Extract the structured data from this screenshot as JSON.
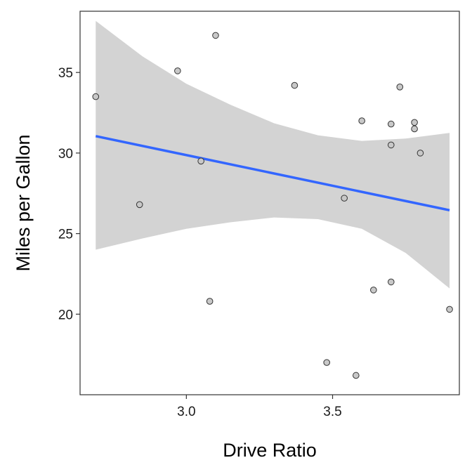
{
  "chart_data": {
    "type": "scatter",
    "title": "",
    "xlabel": "Drive Ratio",
    "ylabel": "Miles per Gallon",
    "xlim": [
      2.6365,
      3.9335
    ],
    "ylim": [
      15.0,
      38.8
    ],
    "x_ticks": [
      3.0,
      3.5
    ],
    "x_tick_labels": [
      "3.0",
      "3.5"
    ],
    "y_ticks": [
      20,
      25,
      30,
      35
    ],
    "y_tick_labels": [
      "20",
      "25",
      "30",
      "35"
    ],
    "grid": false,
    "legend": "none",
    "points": [
      {
        "x": 2.69,
        "y": 33.5
      },
      {
        "x": 2.84,
        "y": 26.8
      },
      {
        "x": 2.97,
        "y": 35.1
      },
      {
        "x": 3.05,
        "y": 29.5
      },
      {
        "x": 3.08,
        "y": 20.8
      },
      {
        "x": 3.1,
        "y": 37.3
      },
      {
        "x": 3.37,
        "y": 34.2
      },
      {
        "x": 3.48,
        "y": 17.0
      },
      {
        "x": 3.54,
        "y": 27.2
      },
      {
        "x": 3.58,
        "y": 16.2
      },
      {
        "x": 3.6,
        "y": 32.0
      },
      {
        "x": 3.64,
        "y": 21.5
      },
      {
        "x": 3.7,
        "y": 31.8
      },
      {
        "x": 3.7,
        "y": 30.5
      },
      {
        "x": 3.7,
        "y": 22.0
      },
      {
        "x": 3.73,
        "y": 34.1
      },
      {
        "x": 3.78,
        "y": 31.9
      },
      {
        "x": 3.78,
        "y": 31.5
      },
      {
        "x": 3.8,
        "y": 30.0
      },
      {
        "x": 3.9,
        "y": 20.3
      }
    ],
    "smooth": {
      "method": "lm",
      "line": [
        {
          "x": 2.69,
          "y": 31.05
        },
        {
          "x": 3.9,
          "y": 26.45
        }
      ],
      "ribbon": [
        {
          "x": 2.69,
          "lower": 24.0,
          "upper": 38.2
        },
        {
          "x": 2.85,
          "lower": 24.7,
          "upper": 36.0
        },
        {
          "x": 3.0,
          "lower": 25.3,
          "upper": 34.3
        },
        {
          "x": 3.15,
          "lower": 25.7,
          "upper": 33.0
        },
        {
          "x": 3.3,
          "lower": 26.0,
          "upper": 31.85
        },
        {
          "x": 3.45,
          "lower": 25.9,
          "upper": 31.1
        },
        {
          "x": 3.6,
          "lower": 25.3,
          "upper": 30.75
        },
        {
          "x": 3.75,
          "lower": 23.8,
          "upper": 30.9
        },
        {
          "x": 3.9,
          "lower": 21.6,
          "upper": 31.25
        }
      ]
    },
    "colors": {
      "point_fill": "#c8c8c8",
      "point_stroke": "#333333",
      "line": "#3366ff",
      "ribbon": "#d3d3d3",
      "panel_border": "#333333"
    }
  }
}
